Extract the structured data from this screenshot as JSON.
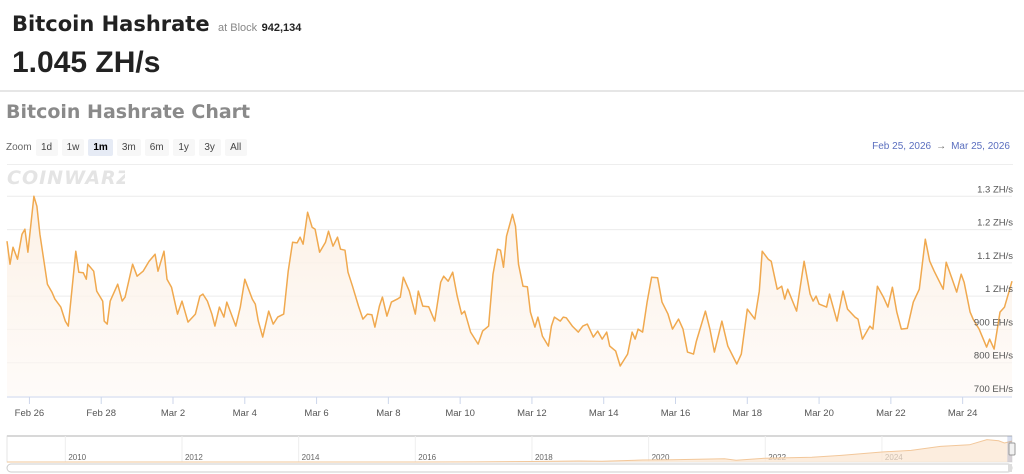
{
  "header": {
    "title": "Bitcoin Hashrate",
    "at_block_label": "at Block",
    "block_number": "942,134",
    "current_value": "1.045 ZH/s"
  },
  "chart_section": {
    "title": "Bitcoin Hashrate Chart",
    "zoom_label": "Zoom",
    "zoom_buttons": [
      {
        "label": "1d",
        "selected": false
      },
      {
        "label": "1w",
        "selected": false
      },
      {
        "label": "1m",
        "selected": true
      },
      {
        "label": "3m",
        "selected": false
      },
      {
        "label": "6m",
        "selected": false
      },
      {
        "label": "1y",
        "selected": false
      },
      {
        "label": "3y",
        "selected": false
      },
      {
        "label": "All",
        "selected": false
      }
    ],
    "range_from": "Feb 25, 2026",
    "range_arrow": "→",
    "range_to": "Mar 25, 2026",
    "logo_text": "COINWARZ"
  },
  "colors": {
    "line": "#f0a94f",
    "fill": "#fdf3ea",
    "range_text": "#5b6fbf",
    "selected_zoom": "#e6ebf5"
  },
  "chart_data": {
    "type": "area",
    "xlim": [
      "2026-02-25T09:00",
      "2026-03-25T09:00"
    ],
    "ylim": [
      700,
      1400
    ],
    "grid": true,
    "y_ticks": [
      {
        "value": 700,
        "label": "700 EH/s"
      },
      {
        "value": 800,
        "label": "800 EH/s"
      },
      {
        "value": 900,
        "label": "900 EH/s"
      },
      {
        "value": 1000,
        "label": "1 ZH/s"
      },
      {
        "value": 1100,
        "label": "1.1 ZH/s"
      },
      {
        "value": 1200,
        "label": "1.2 ZH/s"
      },
      {
        "value": 1300,
        "label": "1.3 ZH/s"
      }
    ],
    "x_ticks": [
      {
        "date": "2026-02-26",
        "label": "Feb 26"
      },
      {
        "date": "2026-02-28",
        "label": "Feb 28"
      },
      {
        "date": "2026-03-02",
        "label": "Mar 2"
      },
      {
        "date": "2026-03-04",
        "label": "Mar 4"
      },
      {
        "date": "2026-03-06",
        "label": "Mar 6"
      },
      {
        "date": "2026-03-08",
        "label": "Mar 8"
      },
      {
        "date": "2026-03-10",
        "label": "Mar 10"
      },
      {
        "date": "2026-03-12",
        "label": "Mar 12"
      },
      {
        "date": "2026-03-14",
        "label": "Mar 14"
      },
      {
        "date": "2026-03-16",
        "label": "Mar 16"
      },
      {
        "date": "2026-03-18",
        "label": "Mar 18"
      },
      {
        "date": "2026-03-20",
        "label": "Mar 20"
      },
      {
        "date": "2026-03-22",
        "label": "Mar 22"
      },
      {
        "date": "2026-03-24",
        "label": "Mar 24"
      }
    ],
    "y_unit": "EH/s",
    "points": [
      [
        "2026-02-25T09:00",
        1165
      ],
      [
        "2026-02-25T11:00",
        1096
      ],
      [
        "2026-02-25T13:00",
        1147
      ],
      [
        "2026-02-25T16:00",
        1111
      ],
      [
        "2026-02-25T19:00",
        1186
      ],
      [
        "2026-02-25T21:00",
        1201
      ],
      [
        "2026-02-25T23:00",
        1132
      ],
      [
        "2026-02-26T03:00",
        1300
      ],
      [
        "2026-02-26T05:00",
        1270
      ],
      [
        "2026-02-26T07:00",
        1186
      ],
      [
        "2026-02-26T09:00",
        1126
      ],
      [
        "2026-02-26T12:00",
        1036
      ],
      [
        "2026-02-26T15:00",
        1012
      ],
      [
        "2026-02-26T17:00",
        991
      ],
      [
        "2026-02-26T21:00",
        967
      ],
      [
        "2026-02-27T00:00",
        925
      ],
      [
        "2026-02-27T02:00",
        910
      ],
      [
        "2026-02-27T07:00",
        1135
      ],
      [
        "2026-02-27T09:00",
        1072
      ],
      [
        "2026-02-27T12:00",
        1070
      ],
      [
        "2026-02-27T14:00",
        1051
      ],
      [
        "2026-02-27T15:00",
        1096
      ],
      [
        "2026-02-27T19:00",
        1075
      ],
      [
        "2026-02-27T21:00",
        1015
      ],
      [
        "2026-02-28T01:00",
        985
      ],
      [
        "2026-02-28T02:00",
        925
      ],
      [
        "2026-02-28T04:00",
        916
      ],
      [
        "2026-02-28T06:00",
        985
      ],
      [
        "2026-02-28T11:00",
        1036
      ],
      [
        "2026-02-28T14:00",
        985
      ],
      [
        "2026-02-28T16:00",
        997
      ],
      [
        "2026-02-28T21:00",
        1096
      ],
      [
        "2026-03-01T00:00",
        1060
      ],
      [
        "2026-03-01T04:00",
        1075
      ],
      [
        "2026-03-01T08:00",
        1105
      ],
      [
        "2026-03-01T12:00",
        1126
      ],
      [
        "2026-03-01T14:00",
        1075
      ],
      [
        "2026-03-01T18:00",
        1135
      ],
      [
        "2026-03-01T20:00",
        1051
      ],
      [
        "2026-03-01T23:00",
        1027
      ],
      [
        "2026-03-02T03:00",
        946
      ],
      [
        "2026-03-02T06:00",
        985
      ],
      [
        "2026-03-02T10:00",
        922
      ],
      [
        "2026-03-02T15:00",
        946
      ],
      [
        "2026-03-02T18:00",
        1000
      ],
      [
        "2026-03-02T20:00",
        1006
      ],
      [
        "2026-03-02T23:00",
        985
      ],
      [
        "2026-03-03T02:00",
        946
      ],
      [
        "2026-03-03T04:00",
        910
      ],
      [
        "2026-03-03T07:00",
        967
      ],
      [
        "2026-03-03T10:00",
        937
      ],
      [
        "2026-03-03T12:00",
        982
      ],
      [
        "2026-03-03T18:00",
        910
      ],
      [
        "2026-03-03T21:00",
        967
      ],
      [
        "2026-03-04T00:00",
        1051
      ],
      [
        "2026-03-04T05:00",
        991
      ],
      [
        "2026-03-04T07:00",
        976
      ],
      [
        "2026-03-04T09:00",
        925
      ],
      [
        "2026-03-04T12:00",
        877
      ],
      [
        "2026-03-04T16:00",
        955
      ],
      [
        "2026-03-04T19:00",
        916
      ],
      [
        "2026-03-04T22:00",
        937
      ],
      [
        "2026-03-05T02:00",
        946
      ],
      [
        "2026-03-05T05:00",
        1075
      ],
      [
        "2026-03-05T08:00",
        1162
      ],
      [
        "2026-03-05T11:00",
        1160
      ],
      [
        "2026-03-05T13:00",
        1177
      ],
      [
        "2026-03-05T15:00",
        1156
      ],
      [
        "2026-03-05T18:00",
        1252
      ],
      [
        "2026-03-05T21:00",
        1207
      ],
      [
        "2026-03-05T23:00",
        1201
      ],
      [
        "2026-03-06T02:00",
        1132
      ],
      [
        "2026-03-06T06:00",
        1162
      ],
      [
        "2026-03-06T08:00",
        1195
      ],
      [
        "2026-03-06T11:00",
        1150
      ],
      [
        "2026-03-06T14:00",
        1177
      ],
      [
        "2026-03-06T16:00",
        1141
      ],
      [
        "2026-03-06T19:00",
        1138
      ],
      [
        "2026-03-06T21:00",
        1072
      ],
      [
        "2026-03-07T00:00",
        1030
      ],
      [
        "2026-03-07T04:00",
        970
      ],
      [
        "2026-03-07T07:00",
        931
      ],
      [
        "2026-03-07T10:00",
        946
      ],
      [
        "2026-03-07T13:00",
        944
      ],
      [
        "2026-03-07T15:00",
        907
      ],
      [
        "2026-03-07T18:00",
        970
      ],
      [
        "2026-03-07T20:00",
        997
      ],
      [
        "2026-03-07T23:00",
        940
      ],
      [
        "2026-03-08T02:00",
        982
      ],
      [
        "2026-03-08T06:00",
        991
      ],
      [
        "2026-03-08T08:00",
        997
      ],
      [
        "2026-03-08T10:00",
        1057
      ],
      [
        "2026-03-08T14:00",
        1015
      ],
      [
        "2026-03-08T18:00",
        946
      ],
      [
        "2026-03-08T20:00",
        1015
      ],
      [
        "2026-03-08T23:00",
        970
      ],
      [
        "2026-03-09T03:00",
        968
      ],
      [
        "2026-03-09T07:00",
        925
      ],
      [
        "2026-03-09T11:00",
        1042
      ],
      [
        "2026-03-09T13:00",
        1060
      ],
      [
        "2026-03-09T16:00",
        1045
      ],
      [
        "2026-03-09T19:00",
        1072
      ],
      [
        "2026-03-09T22:00",
        1000
      ],
      [
        "2026-03-10T01:00",
        946
      ],
      [
        "2026-03-10T03:00",
        955
      ],
      [
        "2026-03-10T07:00",
        892
      ],
      [
        "2026-03-10T12:00",
        856
      ],
      [
        "2026-03-10T15:00",
        895
      ],
      [
        "2026-03-10T19:00",
        910
      ],
      [
        "2026-03-10T22:00",
        1066
      ],
      [
        "2026-03-11T01:00",
        1141
      ],
      [
        "2026-03-11T03:00",
        1138
      ],
      [
        "2026-03-11T05:00",
        1087
      ],
      [
        "2026-03-11T07:00",
        1180
      ],
      [
        "2026-03-11T11:00",
        1246
      ],
      [
        "2026-03-11T13:00",
        1210
      ],
      [
        "2026-03-11T15:00",
        1096
      ],
      [
        "2026-03-11T18:00",
        1030
      ],
      [
        "2026-03-11T21:00",
        1028
      ],
      [
        "2026-03-11T23:00",
        952
      ],
      [
        "2026-03-12T02:00",
        907
      ],
      [
        "2026-03-12T04:00",
        937
      ],
      [
        "2026-03-12T07:00",
        880
      ],
      [
        "2026-03-12T11:00",
        850
      ],
      [
        "2026-03-12T13:00",
        910
      ],
      [
        "2026-03-12T15:00",
        937
      ],
      [
        "2026-03-12T19:00",
        925
      ],
      [
        "2026-03-12T21:00",
        937
      ],
      [
        "2026-03-12T23:00",
        935
      ],
      [
        "2026-03-13T03:00",
        910
      ],
      [
        "2026-03-13T07:00",
        892
      ],
      [
        "2026-03-13T10:00",
        910
      ],
      [
        "2026-03-13T13:00",
        916
      ],
      [
        "2026-03-13T17:00",
        877
      ],
      [
        "2026-03-13T20:00",
        895
      ],
      [
        "2026-03-13T23:00",
        871
      ],
      [
        "2026-03-14T02:00",
        892
      ],
      [
        "2026-03-14T04:00",
        850
      ],
      [
        "2026-03-14T08:00",
        835
      ],
      [
        "2026-03-14T11:00",
        790
      ],
      [
        "2026-03-14T16:00",
        826
      ],
      [
        "2026-03-14T19:00",
        892
      ],
      [
        "2026-03-14T21:00",
        871
      ],
      [
        "2026-03-14T23:00",
        901
      ],
      [
        "2026-03-15T02:00",
        892
      ],
      [
        "2026-03-15T05:00",
        982
      ],
      [
        "2026-03-15T08:00",
        1057
      ],
      [
        "2026-03-15T12:00",
        1055
      ],
      [
        "2026-03-15T15:00",
        982
      ],
      [
        "2026-03-15T19:00",
        946
      ],
      [
        "2026-03-15T22:00",
        901
      ],
      [
        "2026-03-16T02:00",
        931
      ],
      [
        "2026-03-16T05:00",
        901
      ],
      [
        "2026-03-16T08:00",
        832
      ],
      [
        "2026-03-16T12:00",
        826
      ],
      [
        "2026-03-16T14:00",
        865
      ],
      [
        "2026-03-16T20:00",
        955
      ],
      [
        "2026-03-16T23:00",
        901
      ],
      [
        "2026-03-17T02:00",
        832
      ],
      [
        "2026-03-17T07:00",
        925
      ],
      [
        "2026-03-17T11:00",
        850
      ],
      [
        "2026-03-17T17:00",
        796
      ],
      [
        "2026-03-17T20:00",
        826
      ],
      [
        "2026-03-18T00:00",
        961
      ],
      [
        "2026-03-18T05:00",
        931
      ],
      [
        "2026-03-18T08:00",
        1015
      ],
      [
        "2026-03-18T10:00",
        1135
      ],
      [
        "2026-03-18T14:00",
        1111
      ],
      [
        "2026-03-18T16:00",
        1105
      ],
      [
        "2026-03-18T20:00",
        1021
      ],
      [
        "2026-03-18T23:00",
        1030
      ],
      [
        "2026-03-19T01:00",
        991
      ],
      [
        "2026-03-19T03:00",
        1021
      ],
      [
        "2026-03-19T09:00",
        955
      ],
      [
        "2026-03-19T11:00",
        1015
      ],
      [
        "2026-03-19T14:00",
        1105
      ],
      [
        "2026-03-19T18:00",
        1006
      ],
      [
        "2026-03-19T20:00",
        985
      ],
      [
        "2026-03-19T22:00",
        1000
      ],
      [
        "2026-03-20T00:00",
        976
      ],
      [
        "2026-03-20T05:00",
        967
      ],
      [
        "2026-03-20T07:00",
        1006
      ],
      [
        "2026-03-20T12:00",
        925
      ],
      [
        "2026-03-20T16:00",
        1015
      ],
      [
        "2026-03-20T19:00",
        961
      ],
      [
        "2026-03-21T00:00",
        937
      ],
      [
        "2026-03-21T02:00",
        931
      ],
      [
        "2026-03-21T05:00",
        871
      ],
      [
        "2026-03-21T10:00",
        910
      ],
      [
        "2026-03-21T12:00",
        901
      ],
      [
        "2026-03-21T15:00",
        1030
      ],
      [
        "2026-03-21T19:00",
        997
      ],
      [
        "2026-03-21T22:00",
        967
      ],
      [
        "2026-03-22T01:00",
        1027
      ],
      [
        "2026-03-22T04:00",
        952
      ],
      [
        "2026-03-22T07:00",
        901
      ],
      [
        "2026-03-22T11:00",
        903
      ],
      [
        "2026-03-22T15:00",
        982
      ],
      [
        "2026-03-22T19:00",
        1021
      ],
      [
        "2026-03-22T23:00",
        1171
      ],
      [
        "2026-03-23T02:00",
        1105
      ],
      [
        "2026-03-23T05:00",
        1075
      ],
      [
        "2026-03-23T07:00",
        1057
      ],
      [
        "2026-03-23T11:00",
        1021
      ],
      [
        "2026-03-23T13:00",
        1102
      ],
      [
        "2026-03-23T17:00",
        1051
      ],
      [
        "2026-03-23T20:00",
        1012
      ],
      [
        "2026-03-23T23:00",
        1066
      ],
      [
        "2026-03-24T01:00",
        1042
      ],
      [
        "2026-03-24T05:00",
        952
      ],
      [
        "2026-03-24T07:00",
        931
      ],
      [
        "2026-03-24T11:00",
        901
      ],
      [
        "2026-03-24T16:00",
        847
      ],
      [
        "2026-03-24T18:00",
        871
      ],
      [
        "2026-03-24T21:00",
        841
      ],
      [
        "2026-03-25T01:00",
        952
      ],
      [
        "2026-03-25T04:00",
        967
      ],
      [
        "2026-03-25T09:00",
        1045
      ]
    ],
    "navigator": {
      "xlim": [
        2009.0,
        2026.23
      ],
      "ylim": [
        0,
        1200
      ],
      "year_ticks": [
        "2010",
        "2012",
        "2014",
        "2016",
        "2018",
        "2020",
        "2022",
        "2024"
      ],
      "points": [
        [
          2009.0,
          0
        ],
        [
          2014.0,
          0.3
        ],
        [
          2016.0,
          1
        ],
        [
          2017.0,
          6
        ],
        [
          2018.0,
          25
        ],
        [
          2018.8,
          50
        ],
        [
          2019.2,
          40
        ],
        [
          2019.9,
          100
        ],
        [
          2020.4,
          110
        ],
        [
          2021.3,
          160
        ],
        [
          2021.5,
          90
        ],
        [
          2022.0,
          190
        ],
        [
          2022.8,
          240
        ],
        [
          2023.3,
          330
        ],
        [
          2024.0,
          500
        ],
        [
          2024.5,
          580
        ],
        [
          2025.0,
          780
        ],
        [
          2025.5,
          860
        ],
        [
          2025.8,
          1120
        ],
        [
          2026.0,
          1060
        ],
        [
          2026.1,
          950
        ],
        [
          2026.23,
          1045
        ]
      ]
    }
  }
}
